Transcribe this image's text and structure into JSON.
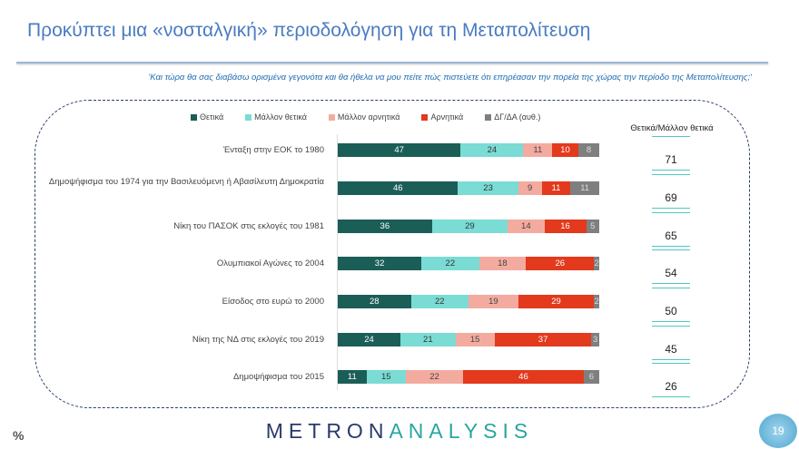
{
  "title": "Προκύπτει μια «νοσταλγική» περιοδολόγηση για τη Μεταπολίτευση",
  "question": "'Και τώρα θα σας διαβάσω ορισμένα γεγονότα και θα ήθελα να μου πείτε πώς πιστεύετε ότι επηρέασαν την πορεία της χώρας την περίοδο της Μεταπολίτευσης;'",
  "unit": "%",
  "logo": {
    "part1": "METRON",
    "part2": "ANALYSIS"
  },
  "page_number": "19",
  "chart_data": {
    "type": "bar",
    "stacked": true,
    "orientation": "horizontal",
    "xlim": [
      0,
      100
    ],
    "legend_position": "top",
    "categories": [
      "Ένταξη στην ΕΟΚ το 1980",
      "Δημοψήφισμα του 1974 για την Βασιλευόμενη ή Αβασίλευτη Δημοκρατία",
      "Νίκη του ΠΑΣΟΚ στις εκλογές του 1981",
      "Ολυμπιακοί Αγώνες το 2004",
      "Είσοδος στο ευρώ το 2000",
      "Νίκη της ΝΔ στις εκλογές του 2019",
      "Δημοψήφισμα του 2015"
    ],
    "series": [
      {
        "name": "Θετικά",
        "color": "#1b5e58",
        "label_color": "#ffffff",
        "values": [
          47,
          46,
          36,
          32,
          28,
          24,
          11
        ]
      },
      {
        "name": "Μάλλον θετικά",
        "color": "#7adcd4",
        "label_color": "#333333",
        "values": [
          24,
          23,
          29,
          22,
          22,
          21,
          15
        ]
      },
      {
        "name": "Μάλλον αρνητικά",
        "color": "#f3aba0",
        "label_color": "#444444",
        "values": [
          11,
          9,
          14,
          18,
          19,
          15,
          22
        ]
      },
      {
        "name": "Αρνητικά",
        "color": "#e3391d",
        "label_color": "#ffffff",
        "values": [
          10,
          11,
          16,
          26,
          29,
          37,
          46
        ]
      },
      {
        "name": "ΔΓ/ΔΑ (αυθ.)",
        "color": "#7f7f7f",
        "label_color": "#dddddd",
        "values": [
          8,
          11,
          5,
          2,
          2,
          3,
          6
        ]
      }
    ],
    "summary": {
      "header": "Θετικά/Μάλλον θετικά",
      "values": [
        71,
        69,
        65,
        54,
        50,
        45,
        26
      ]
    }
  }
}
